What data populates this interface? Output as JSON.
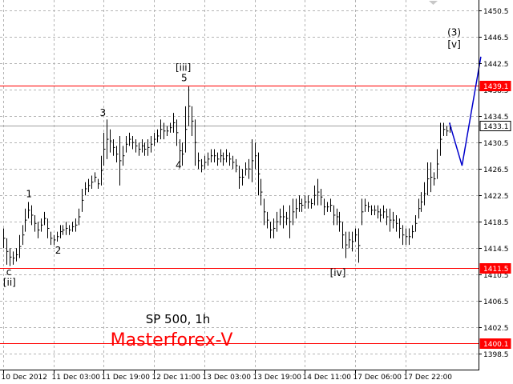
{
  "chart_data": {
    "type": "line",
    "title": "SP 500, 1h",
    "brand": "Masterforex-V",
    "colors": {
      "price": "#000000",
      "resistance": "#ff0000",
      "forecast": "#0000cc",
      "current": "#a0a0a0",
      "grid": "#b4b4b4",
      "brand": "#ff0000"
    },
    "grid": true,
    "ylim": [
      1396.1,
      1452.1
    ],
    "y_ticks": [
      1398.5,
      1402.5,
      1406.5,
      1410.5,
      1414.5,
      1418.5,
      1422.5,
      1426.5,
      1430.5,
      1434.5,
      1438.5,
      1442.5,
      1446.5,
      1450.5
    ],
    "y_tick_labels": [
      "1398.5",
      "1402.5",
      "1406.5",
      "1410.5",
      "1414.5",
      "1418.5",
      "1422.5",
      "1426.5",
      "1430.5",
      "1434.5",
      "1438.5",
      "1442.5",
      "1446.5",
      "1450.5"
    ],
    "x_ticks": [
      0,
      16,
      32,
      48,
      64,
      80,
      96,
      112,
      128
    ],
    "x_tick_labels": [
      "10 Dec 2012",
      "11 Dec 03:00",
      "11 Dec 19:00",
      "12 Dec 11:00",
      "13 Dec 03:00",
      "13 Dec 19:00",
      "14 Dec 11:00",
      "17 Dec 06:00",
      "17 Dec 22:00"
    ],
    "xlim": [
      0,
      151
    ],
    "levels": [
      {
        "value": 1439.1,
        "label": "1439.1",
        "kind": "resistance"
      },
      {
        "value": 1433.1,
        "label": "1433.1",
        "kind": "current"
      },
      {
        "value": 1411.5,
        "label": "1411.5",
        "kind": "resistance"
      },
      {
        "value": 1400.1,
        "label": "1400.1",
        "kind": "resistance"
      }
    ],
    "series": [
      {
        "kind": "bars",
        "bars": [
          [
            0,
            1417.5,
            1414.5
          ],
          [
            1,
            1416,
            1412
          ],
          [
            2,
            1414.5,
            1411.8
          ],
          [
            3,
            1414,
            1412
          ],
          [
            4,
            1414.5,
            1412.5
          ],
          [
            5,
            1416.5,
            1413
          ],
          [
            6,
            1418,
            1415
          ],
          [
            7,
            1420.5,
            1417
          ],
          [
            8,
            1421.5,
            1419
          ],
          [
            9,
            1421,
            1418
          ],
          [
            10,
            1419.5,
            1417
          ],
          [
            11,
            1418.5,
            1416
          ],
          [
            12,
            1419,
            1417
          ],
          [
            13,
            1420,
            1418
          ],
          [
            14,
            1419,
            1416
          ],
          [
            15,
            1417,
            1415
          ],
          [
            16,
            1416.5,
            1415
          ],
          [
            17,
            1417,
            1415.5
          ],
          [
            18,
            1418,
            1416
          ],
          [
            19,
            1418,
            1416.5
          ],
          [
            20,
            1418.5,
            1416.5
          ],
          [
            21,
            1418,
            1416.5
          ],
          [
            22,
            1418.5,
            1417
          ],
          [
            23,
            1419,
            1417
          ],
          [
            24,
            1420.5,
            1418
          ],
          [
            25,
            1423.5,
            1420
          ],
          [
            26,
            1424.5,
            1422.5
          ],
          [
            27,
            1425,
            1423
          ],
          [
            28,
            1425.5,
            1423.5
          ],
          [
            29,
            1426,
            1424.5
          ],
          [
            30,
            1425,
            1423.5
          ],
          [
            31,
            1428.5,
            1424
          ],
          [
            32,
            1432,
            1427
          ],
          [
            33,
            1434,
            1428
          ],
          [
            34,
            1432.5,
            1429
          ],
          [
            35,
            1431,
            1428.5
          ],
          [
            36,
            1430,
            1427.5
          ],
          [
            37,
            1431.5,
            1424
          ],
          [
            38,
            1430,
            1427
          ],
          [
            39,
            1431.5,
            1429
          ],
          [
            40,
            1432,
            1430
          ],
          [
            41,
            1431.5,
            1429.5
          ],
          [
            42,
            1431,
            1429
          ],
          [
            43,
            1430.5,
            1428.5
          ],
          [
            44,
            1431,
            1429
          ],
          [
            45,
            1430.5,
            1428.5
          ],
          [
            46,
            1431,
            1428.5
          ],
          [
            47,
            1431.5,
            1429
          ],
          [
            48,
            1432,
            1430
          ],
          [
            49,
            1432.5,
            1430.5
          ],
          [
            50,
            1434,
            1431
          ],
          [
            51,
            1433.5,
            1431
          ],
          [
            52,
            1433,
            1431.5
          ],
          [
            53,
            1433.5,
            1432
          ],
          [
            54,
            1435,
            1432
          ],
          [
            55,
            1434,
            1430
          ],
          [
            56,
            1431,
            1427.5
          ],
          [
            57,
            1430.5,
            1427
          ],
          [
            58,
            1436,
            1429
          ],
          [
            59,
            1439,
            1433
          ],
          [
            60,
            1436,
            1431.5
          ],
          [
            61,
            1434,
            1427
          ],
          [
            62,
            1429,
            1426.5
          ],
          [
            63,
            1428,
            1426
          ],
          [
            64,
            1428.5,
            1426.5
          ],
          [
            65,
            1429,
            1427
          ],
          [
            66,
            1429.5,
            1427.5
          ],
          [
            67,
            1429.5,
            1427.5
          ],
          [
            68,
            1429,
            1427
          ],
          [
            69,
            1429.5,
            1427.5
          ],
          [
            70,
            1429,
            1427
          ],
          [
            71,
            1429.5,
            1427.5
          ],
          [
            72,
            1429,
            1427
          ],
          [
            73,
            1428.5,
            1426.5
          ],
          [
            74,
            1428,
            1426
          ],
          [
            75,
            1427,
            1423.5
          ],
          [
            76,
            1426.5,
            1424
          ],
          [
            77,
            1427.5,
            1425.5
          ],
          [
            78,
            1428,
            1425
          ],
          [
            79,
            1431,
            1424.5
          ],
          [
            80,
            1430.5,
            1426.5
          ],
          [
            81,
            1429,
            1422.5
          ],
          [
            82,
            1425,
            1421
          ],
          [
            83,
            1422,
            1418
          ],
          [
            84,
            1420,
            1417.5
          ],
          [
            85,
            1418.5,
            1416
          ],
          [
            86,
            1419,
            1416
          ],
          [
            87,
            1420,
            1417
          ],
          [
            88,
            1420.5,
            1418
          ],
          [
            89,
            1421,
            1417.5
          ],
          [
            90,
            1420,
            1418
          ],
          [
            91,
            1421,
            1416
          ],
          [
            92,
            1422,
            1418
          ],
          [
            93,
            1422,
            1419
          ],
          [
            94,
            1422.5,
            1420
          ],
          [
            95,
            1422,
            1420
          ],
          [
            96,
            1422.5,
            1420.5
          ],
          [
            97,
            1422.5,
            1420.5
          ],
          [
            98,
            1422,
            1420.5
          ],
          [
            99,
            1424,
            1421
          ],
          [
            100,
            1425,
            1421
          ],
          [
            101,
            1423.5,
            1421
          ],
          [
            102,
            1422,
            1419.5
          ],
          [
            103,
            1421.5,
            1420
          ],
          [
            104,
            1422,
            1420
          ],
          [
            105,
            1421,
            1418
          ],
          [
            106,
            1420.5,
            1418
          ],
          [
            107,
            1420,
            1417
          ],
          [
            108,
            1418.5,
            1414.5
          ],
          [
            109,
            1417,
            1413
          ],
          [
            110,
            1417,
            1414.5
          ],
          [
            111,
            1417,
            1414
          ],
          [
            112,
            1417.5,
            1415.5
          ],
          [
            113,
            1417.5,
            1412.3
          ],
          [
            114,
            1422,
            1418
          ],
          [
            115,
            1422,
            1420
          ],
          [
            116,
            1421.5,
            1420
          ],
          [
            117,
            1421,
            1419.5
          ],
          [
            118,
            1421,
            1419.5
          ],
          [
            119,
            1421,
            1419
          ],
          [
            120,
            1420.5,
            1418.5
          ],
          [
            121,
            1421,
            1419
          ],
          [
            122,
            1420.5,
            1418
          ],
          [
            123,
            1420.5,
            1417
          ],
          [
            124,
            1420,
            1417.5
          ],
          [
            125,
            1419.5,
            1417
          ],
          [
            126,
            1419,
            1416
          ],
          [
            127,
            1418,
            1415
          ],
          [
            128,
            1417.5,
            1415
          ],
          [
            129,
            1417.5,
            1415
          ],
          [
            130,
            1418,
            1416
          ],
          [
            131,
            1419.5,
            1417
          ],
          [
            132,
            1422,
            1419
          ],
          [
            133,
            1423,
            1420
          ],
          [
            134,
            1424.5,
            1421
          ],
          [
            135,
            1427.5,
            1422.5
          ],
          [
            136,
            1427.5,
            1423
          ],
          [
            137,
            1426,
            1424
          ],
          [
            138,
            1429.5,
            1425
          ],
          [
            139,
            1433.5,
            1428.5
          ],
          [
            140,
            1433.5,
            1431.5
          ],
          [
            141,
            1433,
            1431.5
          ],
          [
            142,
            1433.5,
            1432
          ]
        ]
      },
      {
        "kind": "forecast",
        "points": [
          [
            142,
            1433.5
          ],
          [
            146,
            1427
          ],
          [
            152,
            1443.5
          ]
        ]
      }
    ],
    "annotations": [
      {
        "text": "c",
        "x": 1.8,
        "y": 1410.4
      },
      {
        "text": "[ii]",
        "x": 2,
        "y": 1408.8
      },
      {
        "text": "1",
        "x": 8.2,
        "y": 1422.2
      },
      {
        "text": "2",
        "x": 17.5,
        "y": 1413.7
      },
      {
        "text": "3",
        "x": 31.7,
        "y": 1434.5
      },
      {
        "text": "[iii]",
        "x": 57.3,
        "y": 1441.4
      },
      {
        "text": "5",
        "x": 57.6,
        "y": 1439.8
      },
      {
        "text": "4",
        "x": 55.8,
        "y": 1426.6
      },
      {
        "text": "[iv]",
        "x": 106.5,
        "y": 1410.3
      },
      {
        "text": "(3)",
        "x": 143.5,
        "y": 1446.7
      },
      {
        "text": "[v]",
        "x": 143.5,
        "y": 1444.9
      }
    ]
  }
}
